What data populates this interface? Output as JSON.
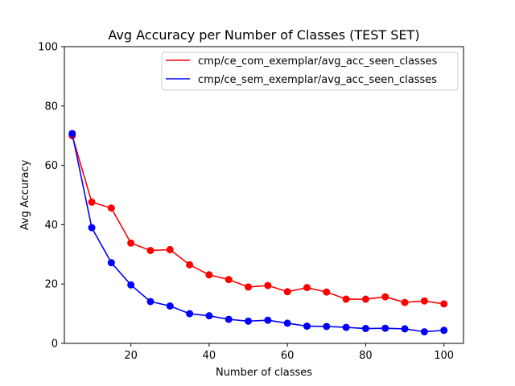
{
  "chart_data": {
    "type": "line",
    "title": "Avg Accuracy per Number of Classes (TEST SET)",
    "xlabel": "Number of classes",
    "ylabel": "Avg Accuracy",
    "xlim": [
      3,
      105
    ],
    "ylim": [
      0,
      100
    ],
    "xticks": [
      20,
      40,
      60,
      80,
      100
    ],
    "yticks": [
      0,
      20,
      40,
      60,
      80,
      100
    ],
    "grid": false,
    "legend_position": "top-right",
    "x": [
      5,
      10,
      15,
      20,
      25,
      30,
      35,
      40,
      45,
      50,
      55,
      60,
      65,
      70,
      75,
      80,
      85,
      90,
      95,
      100
    ],
    "series": [
      {
        "name": "cmp/ce_com_exemplar/avg_acc_seen_classes",
        "color": "#ff0000",
        "values": [
          70.0,
          47.6,
          45.6,
          33.8,
          31.3,
          31.6,
          26.5,
          23.1,
          21.5,
          19.0,
          19.5,
          17.4,
          18.8,
          17.3,
          14.9,
          14.9,
          15.7,
          13.8,
          14.3,
          13.3
        ]
      },
      {
        "name": "cmp/ce_sem_exemplar/avg_acc_seen_classes",
        "color": "#0000ff",
        "values": [
          70.7,
          39.0,
          27.2,
          19.7,
          14.1,
          12.6,
          10.0,
          9.3,
          8.1,
          7.5,
          7.8,
          6.8,
          5.8,
          5.7,
          5.4,
          5.0,
          5.1,
          4.9,
          3.9,
          4.4
        ]
      }
    ]
  }
}
